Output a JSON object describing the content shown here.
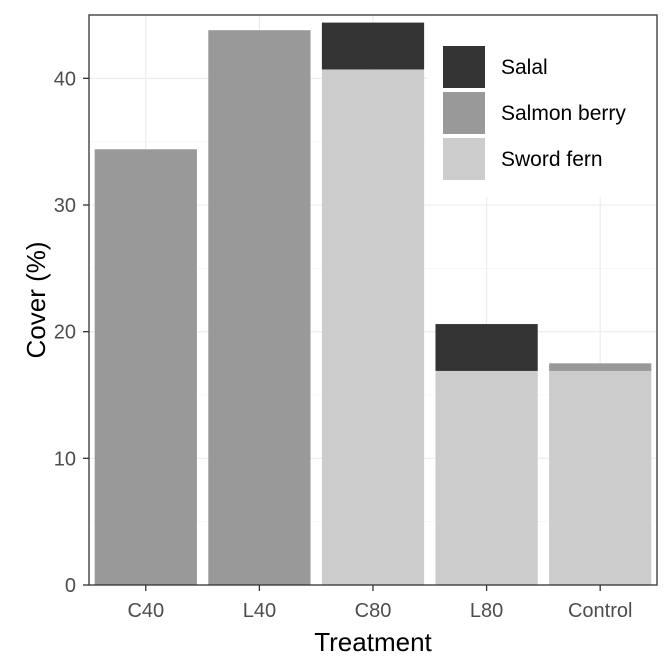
{
  "chart_data": {
    "type": "bar",
    "stacked": true,
    "categories": [
      "C40",
      "L40",
      "C80",
      "L80",
      "Control"
    ],
    "series": [
      {
        "name": "Sword fern",
        "color": "#cccccc",
        "values": [
          0,
          0,
          40.7,
          16.9,
          16.9
        ]
      },
      {
        "name": "Salmon berry",
        "color": "#999999",
        "values": [
          34.4,
          43.8,
          0,
          0,
          0.6
        ]
      },
      {
        "name": "Salal",
        "color": "#333333",
        "values": [
          0,
          0,
          3.7,
          3.7,
          0
        ]
      }
    ],
    "legend_order": [
      "Salal",
      "Salmon berry",
      "Sword fern"
    ],
    "legend_position": "top-right",
    "xlabel": "Treatment",
    "ylabel": "Cover (%)",
    "ylim": [
      0,
      45
    ],
    "yticks": [
      0,
      10,
      20,
      30,
      40
    ],
    "grid": true,
    "theme_colors": {
      "panel_border": "#333333",
      "tick_text": "#4d4d4d",
      "grid_major": "#ebebeb"
    }
  }
}
